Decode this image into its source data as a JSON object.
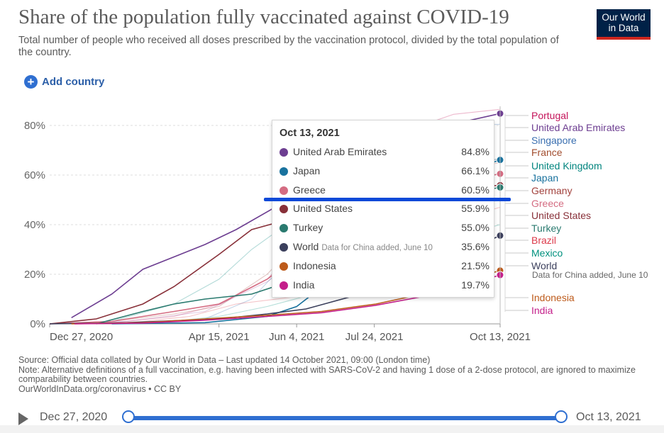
{
  "header": {
    "title": "Share of the population fully vaccinated against COVID-19",
    "subtitle": "Total number of people who received all doses prescribed by the vaccination protocol, divided by the total population of the country.",
    "logo_line1": "Our World",
    "logo_line2": "in Data",
    "add_country_label": "Add country"
  },
  "colors": {
    "accent": "#2f6fd1",
    "logo_bg": "#002147",
    "logo_stripe": "#ce261e",
    "highlight_bar": "#0b49d8"
  },
  "chart_data": {
    "type": "line",
    "title": "Share of the population fully vaccinated against COVID-19",
    "x_ticks": [
      "Dec 27, 2020",
      "Apr 15, 2021",
      "Jun 4, 2021",
      "Jul 24, 2021",
      "Oct 13, 2021"
    ],
    "x_range_days": [
      0,
      290
    ],
    "x_tick_days": [
      0,
      109,
      159,
      209,
      290
    ],
    "y_ticks": [
      "0%",
      "20%",
      "40%",
      "60%",
      "80%"
    ],
    "y_tick_values": [
      0,
      20,
      40,
      60,
      80
    ],
    "ylim": [
      0,
      86
    ],
    "gridlines": true,
    "series": [
      {
        "name": "Portugal",
        "color": "#c4145a",
        "points": [
          [
            0,
            0
          ],
          [
            40,
            0.5
          ],
          [
            80,
            3
          ],
          [
            110,
            8
          ],
          [
            140,
            18
          ],
          [
            170,
            38
          ],
          [
            200,
            58
          ],
          [
            230,
            78
          ],
          [
            260,
            84.5
          ],
          [
            290,
            86.5
          ]
        ]
      },
      {
        "name": "United Arab Emirates",
        "color": "#6d3e91",
        "points": [
          [
            14,
            2.5
          ],
          [
            40,
            12
          ],
          [
            60,
            22
          ],
          [
            100,
            32
          ],
          [
            120,
            38
          ],
          [
            159,
            52
          ],
          [
            200,
            65
          ],
          [
            240,
            76
          ],
          [
            270,
            82
          ],
          [
            290,
            84.8
          ]
        ]
      },
      {
        "name": "Singapore",
        "color": "#3a6fb0",
        "points": [
          [
            20,
            0
          ],
          [
            60,
            0.5
          ],
          [
            100,
            2
          ],
          [
            130,
            10
          ],
          [
            160,
            30
          ],
          [
            190,
            48
          ],
          [
            220,
            68
          ],
          [
            250,
            78
          ],
          [
            275,
            80
          ],
          [
            290,
            80.5
          ]
        ]
      },
      {
        "name": "France",
        "color": "#a2559c",
        "points": [
          [
            0,
            0
          ],
          [
            50,
            1
          ],
          [
            100,
            5
          ],
          [
            140,
            17
          ],
          [
            170,
            30
          ],
          [
            200,
            45
          ],
          [
            230,
            57
          ],
          [
            260,
            64
          ],
          [
            290,
            66.5
          ]
        ]
      },
      {
        "name": "United Kingdom",
        "color": "#00847e",
        "points": [
          [
            0,
            0
          ],
          [
            40,
            1
          ],
          [
            80,
            8
          ],
          [
            109,
            18
          ],
          [
            130,
            30
          ],
          [
            159,
            43
          ],
          [
            190,
            55
          ],
          [
            230,
            63
          ],
          [
            290,
            66.5
          ]
        ]
      },
      {
        "name": "Japan",
        "color": "#19729e",
        "points": [
          [
            40,
            0
          ],
          [
            100,
            0.5
          ],
          [
            140,
            3
          ],
          [
            159,
            7
          ],
          [
            190,
            22
          ],
          [
            220,
            40
          ],
          [
            250,
            55
          ],
          [
            270,
            62
          ],
          [
            290,
            66.1
          ]
        ]
      },
      {
        "name": "Germany",
        "color": "#a2423d",
        "points": [
          [
            0,
            0
          ],
          [
            40,
            1
          ],
          [
            80,
            4
          ],
          [
            109,
            7
          ],
          [
            140,
            20
          ],
          [
            170,
            40
          ],
          [
            200,
            52
          ],
          [
            240,
            60
          ],
          [
            290,
            65
          ]
        ]
      },
      {
        "name": "Greece",
        "color": "#d46c82",
        "points": [
          [
            0,
            0
          ],
          [
            40,
            1
          ],
          [
            80,
            5
          ],
          [
            109,
            8
          ],
          [
            140,
            18
          ],
          [
            170,
            32
          ],
          [
            200,
            46
          ],
          [
            230,
            54
          ],
          [
            290,
            60.5
          ]
        ]
      },
      {
        "name": "United States",
        "color": "#883039",
        "points": [
          [
            0,
            0
          ],
          [
            30,
            2
          ],
          [
            60,
            8
          ],
          [
            80,
            15
          ],
          [
            109,
            28
          ],
          [
            130,
            38
          ],
          [
            159,
            43
          ],
          [
            200,
            50
          ],
          [
            250,
            54
          ],
          [
            290,
            55.9
          ]
        ]
      },
      {
        "name": "Turkey",
        "color": "#2a7a6f",
        "points": [
          [
            30,
            0
          ],
          [
            60,
            5
          ],
          [
            80,
            8
          ],
          [
            100,
            10
          ],
          [
            130,
            12
          ],
          [
            159,
            18
          ],
          [
            190,
            34
          ],
          [
            220,
            44
          ],
          [
            260,
            52
          ],
          [
            290,
            55
          ]
        ]
      },
      {
        "name": "Brazil",
        "color": "#dc3a4a",
        "points": [
          [
            30,
            0
          ],
          [
            60,
            1
          ],
          [
            90,
            3
          ],
          [
            120,
            8
          ],
          [
            159,
            11
          ],
          [
            190,
            16
          ],
          [
            220,
            27
          ],
          [
            250,
            40
          ],
          [
            290,
            47
          ]
        ]
      },
      {
        "name": "Mexico",
        "color": "#00917e",
        "points": [
          [
            30,
            0
          ],
          [
            70,
            0.5
          ],
          [
            109,
            3
          ],
          [
            140,
            7
          ],
          [
            170,
            12
          ],
          [
            200,
            20
          ],
          [
            230,
            28
          ],
          [
            260,
            35
          ],
          [
            290,
            40
          ]
        ]
      },
      {
        "name": "World",
        "note": "Data for China added, June 10",
        "color": "#3b3f5c",
        "points": [
          [
            0,
            0
          ],
          [
            50,
            0.5
          ],
          [
            109,
            2
          ],
          [
            140,
            4
          ],
          [
            165,
            6
          ],
          [
            200,
            12
          ],
          [
            240,
            22
          ],
          [
            270,
            30
          ],
          [
            290,
            35.6
          ]
        ]
      },
      {
        "name": "Indonesia",
        "color": "#bd5a1a",
        "points": [
          [
            14,
            0
          ],
          [
            60,
            0.5
          ],
          [
            100,
            2
          ],
          [
            140,
            3.5
          ],
          [
            175,
            5
          ],
          [
            210,
            8
          ],
          [
            240,
            12
          ],
          [
            270,
            18
          ],
          [
            290,
            21.5
          ]
        ]
      },
      {
        "name": "India",
        "color": "#c41f8a",
        "points": [
          [
            16,
            0
          ],
          [
            60,
            0.3
          ],
          [
            100,
            1.5
          ],
          [
            140,
            3
          ],
          [
            175,
            4.5
          ],
          [
            210,
            7.5
          ],
          [
            240,
            11
          ],
          [
            270,
            16
          ],
          [
            290,
            19.7
          ]
        ]
      }
    ]
  },
  "tooltip": {
    "date": "Oct 13, 2021",
    "rows": [
      {
        "name": "United Arab Emirates",
        "value": "84.8%",
        "color": "#6d3e91"
      },
      {
        "name": "Japan",
        "value": "66.1%",
        "color": "#19729e"
      },
      {
        "name": "Greece",
        "value": "60.5%",
        "color": "#d46c82"
      },
      {
        "name": "United States",
        "value": "55.9%",
        "color": "#883039"
      },
      {
        "name": "Turkey",
        "value": "55.0%",
        "color": "#2a7a6f"
      },
      {
        "name": "World",
        "note": "Data for China added, June 10",
        "value": "35.6%",
        "color": "#3b3f5c"
      },
      {
        "name": "Indonesia",
        "value": "21.5%",
        "color": "#bd5a1a"
      },
      {
        "name": "India",
        "value": "19.7%",
        "color": "#c41f8a"
      }
    ]
  },
  "legend": [
    {
      "name": "Portugal",
      "color": "#c4145a"
    },
    {
      "name": "United Arab Emirates",
      "color": "#6d3e91"
    },
    {
      "name": "Singapore",
      "color": "#3a6fb0"
    },
    {
      "name": "France",
      "color": "#a24e2f"
    },
    {
      "name": "United Kingdom",
      "color": "#00847e"
    },
    {
      "name": "Japan",
      "color": "#19729e"
    },
    {
      "name": "Germany",
      "color": "#a2423d"
    },
    {
      "name": "Greece",
      "color": "#d46c82"
    },
    {
      "name": "United States",
      "color": "#883039"
    },
    {
      "name": "Turkey",
      "color": "#2a7a6f"
    },
    {
      "name": "Brazil",
      "color": "#dc3a4a"
    },
    {
      "name": "Mexico",
      "color": "#00917e"
    },
    {
      "name": "World",
      "color": "#3b3f5c",
      "note": "Data for China added, June 10"
    },
    {
      "name": "Indonesia",
      "color": "#bd5a1a"
    },
    {
      "name": "India",
      "color": "#c41f8a"
    }
  ],
  "footer": {
    "source": "Source: Official data collated by Our World in Data – Last updated 14 October 2021, 09:00 (London time)",
    "note": "Note: Alternative definitions of a full vaccination, e.g. having been infected with SARS-CoV-2 and having 1 dose of a 2-dose protocol, are ignored to maximize comparability between countries.",
    "link": "OurWorldInData.org/coronavirus • CC BY"
  },
  "timeline": {
    "start_label": "Dec 27, 2020",
    "end_label": "Oct 13, 2021",
    "start_fraction": 0,
    "end_fraction": 1
  }
}
